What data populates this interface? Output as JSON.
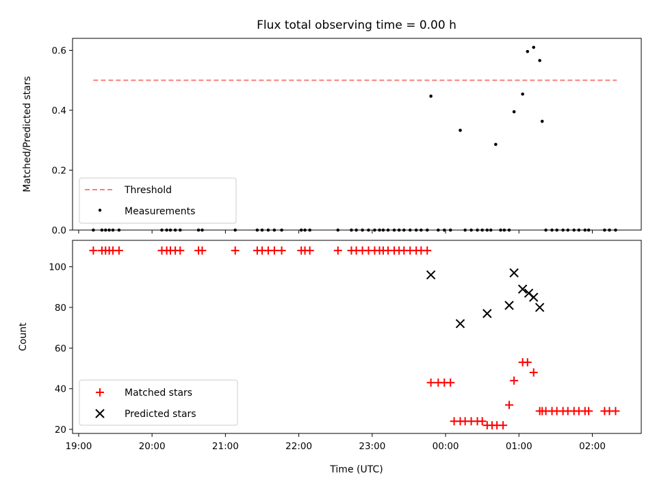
{
  "chart_data": [
    {
      "type": "scatter",
      "title": "Flux total observing time = 0.00 h",
      "xlabel": "",
      "ylabel": "Matched/Predicted stars",
      "ylim": [
        0,
        0.64
      ],
      "xlim": [
        "18:55",
        "02:40"
      ],
      "yticks": [
        "0.0",
        "0.2",
        "0.4",
        "0.6"
      ],
      "legend": "lower-left",
      "grid": false,
      "series": [
        {
          "name": "Threshold",
          "kind": "dashed-line",
          "color": "#f77f7f",
          "x": [
            "19:12",
            "02:20"
          ],
          "y": [
            0.5,
            0.5
          ]
        },
        {
          "name": "Measurements",
          "kind": "dots",
          "color": "#000000",
          "x": [
            "19:12",
            "19:19",
            "19:22",
            "19:25",
            "19:28",
            "19:33",
            "20:08",
            "20:12",
            "20:15",
            "20:19",
            "20:23",
            "20:38",
            "20:41",
            "21:08",
            "21:26",
            "21:30",
            "21:35",
            "21:40",
            "21:46",
            "22:02",
            "22:05",
            "22:09",
            "22:32",
            "22:43",
            "22:47",
            "22:52",
            "22:57",
            "23:02",
            "23:06",
            "23:09",
            "23:13",
            "23:18",
            "23:22",
            "23:26",
            "23:31",
            "23:36",
            "23:40",
            "23:45",
            "23:48",
            "23:54",
            "23:59",
            "00:04",
            "00:12",
            "00:16",
            "00:21",
            "00:26",
            "00:30",
            "00:34",
            "00:37",
            "00:41",
            "00:45",
            "00:48",
            "00:52",
            "00:56",
            "01:03",
            "01:07",
            "01:12",
            "01:17",
            "01:19",
            "01:22",
            "01:27",
            "01:31",
            "01:36",
            "01:40",
            "01:45",
            "01:49",
            "01:54",
            "01:57",
            "02:10",
            "02:14",
            "02:19"
          ],
          "y": [
            0,
            0,
            0,
            0,
            0,
            0,
            0,
            0,
            0,
            0,
            0,
            0,
            0,
            0,
            0,
            0,
            0,
            0,
            0,
            0,
            0,
            0,
            0,
            0,
            0,
            0,
            0,
            0,
            0,
            0,
            0,
            0,
            0,
            0,
            0,
            0,
            0,
            0,
            0.447,
            0,
            0,
            0,
            0.333,
            0,
            0,
            0,
            0,
            0,
            0,
            0.286,
            0,
            0,
            0,
            0.395,
            0.454,
            0.596,
            0.61,
            0.566,
            0.363,
            0,
            0,
            0,
            0,
            0,
            0,
            0,
            0,
            0,
            0,
            0,
            0
          ]
        }
      ]
    },
    {
      "type": "scatter",
      "title": "",
      "xlabel": "Time (UTC)",
      "ylabel": "Count",
      "ylim": [
        18,
        113
      ],
      "xlim": [
        "18:55",
        "02:40"
      ],
      "xticks": [
        "19:00",
        "20:00",
        "21:00",
        "22:00",
        "23:00",
        "00:00",
        "01:00",
        "02:00"
      ],
      "yticks": [
        "20",
        "40",
        "60",
        "80",
        "100"
      ],
      "legend": "lower-left",
      "grid": false,
      "series": [
        {
          "name": "Matched stars",
          "kind": "plus",
          "color": "#ff0000",
          "x": [
            "19:12",
            "19:19",
            "19:22",
            "19:25",
            "19:28",
            "19:33",
            "20:08",
            "20:12",
            "20:15",
            "20:19",
            "20:23",
            "20:38",
            "20:41",
            "21:08",
            "21:26",
            "21:30",
            "21:35",
            "21:40",
            "21:46",
            "22:02",
            "22:05",
            "22:09",
            "22:32",
            "22:43",
            "22:47",
            "22:52",
            "22:57",
            "23:02",
            "23:06",
            "23:09",
            "23:13",
            "23:18",
            "23:22",
            "23:26",
            "23:31",
            "23:36",
            "23:40",
            "23:45",
            "23:48",
            "23:54",
            "23:59",
            "00:04",
            "00:07",
            "00:12",
            "00:16",
            "00:21",
            "00:26",
            "00:30",
            "00:34",
            "00:38",
            "00:42",
            "00:47",
            "00:52",
            "00:56",
            "01:03",
            "01:07",
            "01:12",
            "01:17",
            "01:19",
            "01:22",
            "01:27",
            "01:31",
            "01:36",
            "01:40",
            "01:45",
            "01:49",
            "01:54",
            "01:57",
            "02:10",
            "02:14",
            "02:19"
          ],
          "y": [
            108,
            108,
            108,
            108,
            108,
            108,
            108,
            108,
            108,
            108,
            108,
            108,
            108,
            108,
            108,
            108,
            108,
            108,
            108,
            108,
            108,
            108,
            108,
            108,
            108,
            108,
            108,
            108,
            108,
            108,
            108,
            108,
            108,
            108,
            108,
            108,
            108,
            108,
            43,
            43,
            43,
            43,
            24,
            24,
            24,
            24,
            24,
            24,
            22,
            22,
            22,
            22,
            32,
            44,
            53,
            53,
            48,
            29,
            29,
            29,
            29,
            29,
            29,
            29,
            29,
            29,
            29,
            29,
            29,
            29,
            29
          ]
        },
        {
          "name": "Predicted stars",
          "kind": "x",
          "color": "#000000",
          "x": [
            "23:48",
            "00:12",
            "00:34",
            "00:52",
            "00:56",
            "01:03",
            "01:08",
            "01:12",
            "01:17"
          ],
          "y": [
            96,
            72,
            77,
            81,
            97,
            89,
            87,
            85,
            80
          ]
        }
      ]
    }
  ]
}
